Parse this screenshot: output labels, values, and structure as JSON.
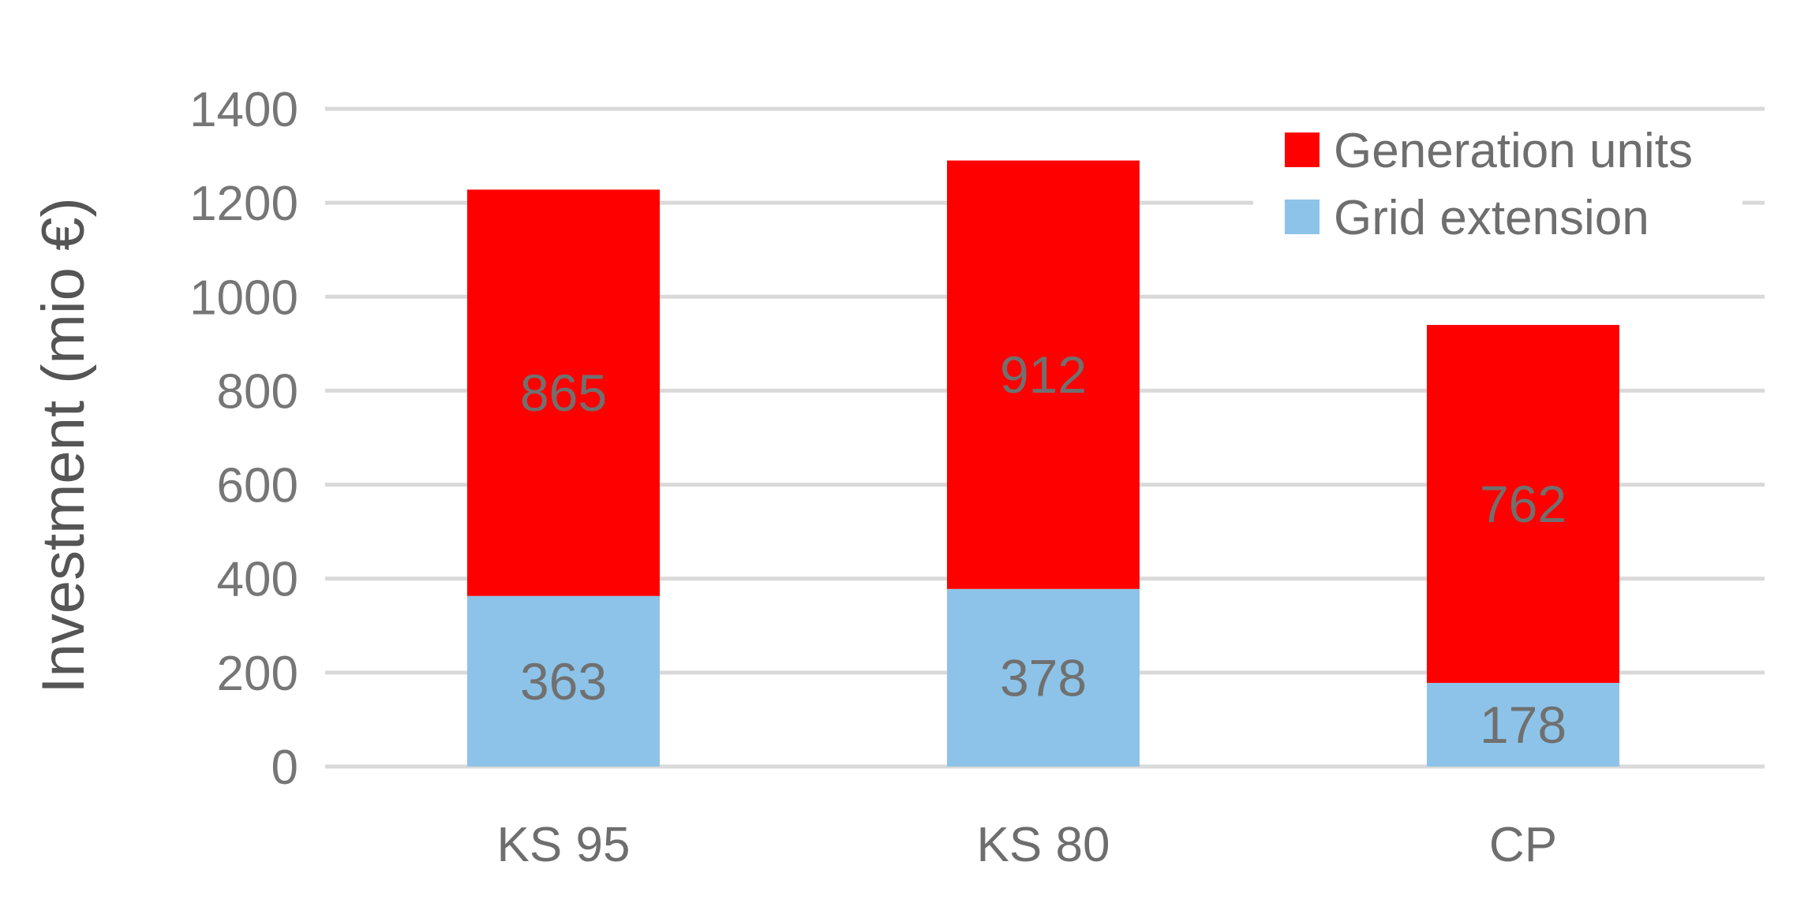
{
  "chart_data": {
    "type": "bar",
    "stacked": true,
    "categories": [
      "KS 95",
      "KS 80",
      "CP"
    ],
    "series": [
      {
        "name": "Grid extension",
        "values": [
          363,
          378,
          178
        ],
        "color": "#8DC3E8"
      },
      {
        "name": "Generation units",
        "values": [
          865,
          912,
          762
        ],
        "color": "#FF0000"
      }
    ],
    "legend_order": [
      "Generation units",
      "Grid extension"
    ],
    "ylabel": "Investment (mio €)",
    "xlabel": "",
    "ylim": [
      0,
      1400
    ],
    "yticks": [
      0,
      200,
      400,
      600,
      800,
      1000,
      1200,
      1400
    ],
    "grid": true,
    "legend_position": "top-right",
    "data_labels": true,
    "gridline_color": "#D9D9D9",
    "text_color": "#767676"
  }
}
